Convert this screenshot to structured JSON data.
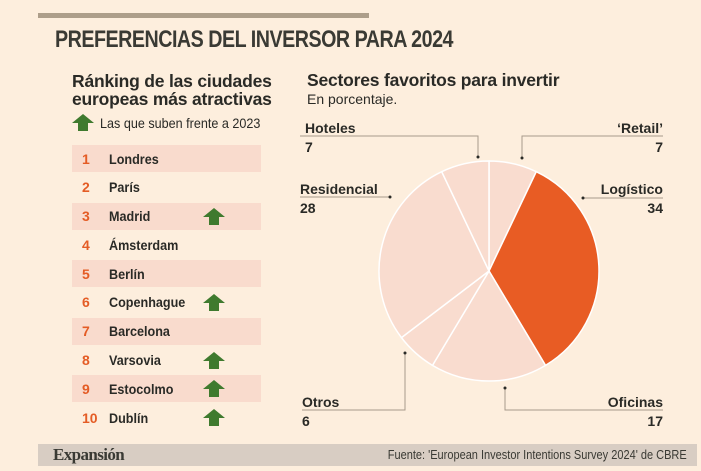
{
  "header": {
    "title": "PREFERENCIAS DEL INVERSOR PARA 2024"
  },
  "ranking": {
    "title_line1": "Ránking de las ciudades",
    "title_line2": "europeas más atractivas",
    "legend_label": "Las que suben frente a 2023",
    "legend_icon": "up-arrow-icon",
    "rows": [
      {
        "rank": "1",
        "city": "Londres",
        "up": false
      },
      {
        "rank": "2",
        "city": "París",
        "up": false
      },
      {
        "rank": "3",
        "city": "Madrid",
        "up": true
      },
      {
        "rank": "4",
        "city": "Ámsterdam",
        "up": false
      },
      {
        "rank": "5",
        "city": "Berlín",
        "up": false
      },
      {
        "rank": "6",
        "city": "Copenhague",
        "up": true
      },
      {
        "rank": "7",
        "city": "Barcelona",
        "up": false
      },
      {
        "rank": "8",
        "city": "Varsovia",
        "up": true
      },
      {
        "rank": "9",
        "city": "Estocolmo",
        "up": true
      },
      {
        "rank": "10",
        "city": "Dublín",
        "up": true
      }
    ]
  },
  "colors": {
    "accent": "#e85c24",
    "light_slice": "#f9dccf",
    "up_arrow": "#3f7a2e",
    "rank_number": "#e45c25"
  },
  "chart_data": {
    "type": "pie",
    "title": "Sectores favoritos para invertir",
    "subtitle": "En porcentaje.",
    "start": "top, clockwise",
    "slices": [
      {
        "label": "'Retail'",
        "display_label": "‘Retail’",
        "value": 7,
        "highlight": false
      },
      {
        "label": "Logístico",
        "display_label": "Logístico",
        "value": 34,
        "highlight": true
      },
      {
        "label": "Oficinas",
        "display_label": "Oficinas",
        "value": 17,
        "highlight": false
      },
      {
        "label": "Otros",
        "display_label": "Otros",
        "value": 6,
        "highlight": false
      },
      {
        "label": "Residencial",
        "display_label": "Residencial",
        "value": 28,
        "highlight": false
      },
      {
        "label": "Hoteles",
        "display_label": "Hoteles",
        "value": 7,
        "highlight": false
      }
    ]
  },
  "footer": {
    "brand": "Expansión",
    "source": "Fuente: 'European Investor Intentions Survey 2024' de CBRE"
  }
}
